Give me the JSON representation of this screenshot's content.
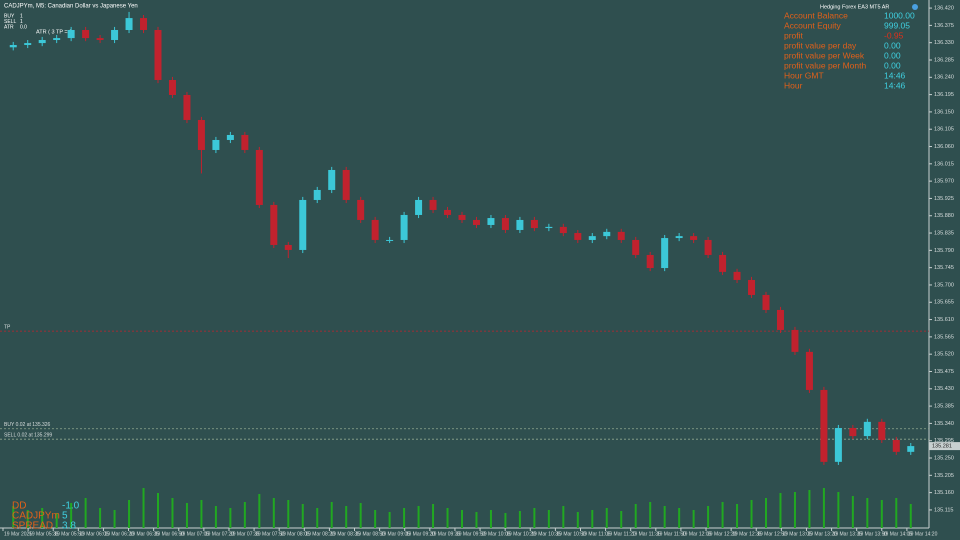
{
  "window_title": "CADJPYm, M5:  Canadian Dollar vs Japanese Yen",
  "ea_name": "Hedging Forex EA3 MT5 AR",
  "info": [
    [
      "BUY",
      "1"
    ],
    [
      "SELL",
      "1"
    ],
    [
      "ATR",
      "0.0"
    ]
  ],
  "atr_note": "ATR ( 3  TP =     0",
  "account": [
    [
      "Account Balance",
      "1000.00"
    ],
    [
      "Account Equity",
      "999.05"
    ],
    [
      "profit",
      "-0.95"
    ],
    [
      "profit value per day",
      "0.00"
    ],
    [
      "profit value per Week",
      "0.00"
    ],
    [
      "profit value per Month",
      "0.00"
    ],
    [
      "Hour GMT",
      "14:46"
    ],
    [
      "Hour",
      "14:46"
    ]
  ],
  "footer": [
    [
      "DD",
      "-1.0"
    ],
    [
      "CADJPYm",
      "5"
    ],
    [
      "SPREAD",
      "3.8"
    ]
  ],
  "chart_data": {
    "type": "candlestick",
    "up_color": "#3cc8d8",
    "down_color": "#c1222e",
    "volume_color": "#21a821",
    "ylim": [
      135.068,
      136.441
    ],
    "volume_ylim": [
      0,
      60
    ],
    "yticks": [
      {
        "value": 136.42,
        "label": "136.420"
      },
      136.375,
      {
        "value": 136.33,
        "label": "136.330"
      },
      136.285,
      {
        "value": 136.24,
        "label": "136.240"
      },
      136.195,
      {
        "value": 136.15,
        "label": "136.150"
      },
      136.105,
      {
        "value": 136.06,
        "label": "136.060"
      },
      136.015,
      {
        "value": 135.97,
        "label": "135.970"
      },
      135.925,
      {
        "value": 135.88,
        "label": "135.880"
      },
      135.835,
      {
        "value": 135.79,
        "label": "135.790"
      },
      135.745,
      {
        "value": 135.7,
        "label": "135.700"
      },
      135.655,
      {
        "value": 135.61,
        "label": "135.610"
      },
      135.565,
      {
        "value": 135.52,
        "label": "135.520"
      },
      135.475,
      {
        "value": 135.43,
        "label": "135.430"
      },
      135.385,
      {
        "value": 135.34,
        "label": "135.340"
      },
      135.295,
      {
        "value": 135.25,
        "label": "135.250"
      },
      135.205,
      {
        "value": 135.16,
        "label": "135.160"
      },
      135.115
    ],
    "time_labels": [
      "19 Mar 2025",
      "19 Mar 05:35",
      "19 Mar 05:50",
      "19 Mar 06:05",
      "19 Mar 06:20",
      "19 Mar 06:35",
      "19 Mar 06:50",
      "19 Mar 07:05",
      "19 Mar 07:20",
      "19 Mar 07:35",
      "19 Mar 07:50",
      "19 Mar 08:05",
      "19 Mar 08:20",
      "19 Mar 08:35",
      "19 Mar 08:50",
      "19 Mar 09:05",
      "19 Mar 09:20",
      "19 Mar 09:35",
      "19 Mar 09:50",
      "19 Mar 10:05",
      "19 Mar 10:20",
      "19 Mar 10:35",
      "19 Mar 10:50",
      "19 Mar 11:05",
      "19 Mar 11:20",
      "19 Mar 11:35",
      "19 Mar 11:50",
      "19 Mar 12:05",
      "19 Mar 12:20",
      "19 Mar 12:35",
      "19 Mar 12:50",
      "19 Mar 13:05",
      "19 Mar 13:20",
      "19 Mar 13:35",
      "19 Mar 13:50",
      "19 Mar 14:05",
      "19 Mar 14:20"
    ],
    "levels": [
      {
        "label": "TP",
        "value": 135.58,
        "color": "#c1222e"
      },
      {
        "label": "BUY 0.02 at 135.326",
        "value": 135.326,
        "color": "#8fa88f"
      },
      {
        "label": "SELL 0.02 at 135.299",
        "value": 135.299,
        "color": "#8fa88f"
      }
    ],
    "current_price": {
      "value": 135.281,
      "label": "135.281"
    },
    "open": [
      136.318,
      136.324,
      136.329,
      136.337,
      136.342,
      136.363,
      136.342,
      136.337,
      136.363,
      136.394,
      136.363,
      136.233,
      136.194,
      136.129,
      136.051,
      136.077,
      136.09,
      136.051,
      135.908,
      135.804,
      135.791,
      135.921,
      135.947,
      135.999,
      135.921,
      135.869,
      135.817,
      135.817,
      135.882,
      135.921,
      135.895,
      135.882,
      135.869,
      135.856,
      135.874,
      135.843,
      135.869,
      135.848,
      135.851,
      135.835,
      135.817,
      135.827,
      135.838,
      135.817,
      135.778,
      135.744,
      135.822,
      135.827,
      135.817,
      135.778,
      135.734,
      135.713,
      135.674,
      135.635,
      135.583,
      135.526,
      135.427,
      135.24,
      135.328,
      135.307,
      135.344,
      135.297,
      135.266
    ],
    "high": [
      136.332,
      136.337,
      136.345,
      136.35,
      136.371,
      136.371,
      136.35,
      136.371,
      136.41,
      136.402,
      136.371,
      136.241,
      136.202,
      136.137,
      136.085,
      136.098,
      136.098,
      136.059,
      135.916,
      135.812,
      135.929,
      135.955,
      136.007,
      136.007,
      135.929,
      135.877,
      135.825,
      135.89,
      135.929,
      135.929,
      135.903,
      135.89,
      135.877,
      135.882,
      135.882,
      135.877,
      135.877,
      135.859,
      135.859,
      135.843,
      135.835,
      135.846,
      135.846,
      135.825,
      135.786,
      135.83,
      135.835,
      135.835,
      135.825,
      135.786,
      135.742,
      135.721,
      135.682,
      135.643,
      135.591,
      135.534,
      135.435,
      135.336,
      135.336,
      135.352,
      135.352,
      135.305,
      135.289
    ],
    "low": [
      136.31,
      136.316,
      136.321,
      136.329,
      136.334,
      136.334,
      136.329,
      136.329,
      136.355,
      136.355,
      136.225,
      136.186,
      136.121,
      135.99,
      136.043,
      136.069,
      136.043,
      135.9,
      135.796,
      135.77,
      135.783,
      135.913,
      135.939,
      135.913,
      135.861,
      135.809,
      135.809,
      135.809,
      135.874,
      135.887,
      135.874,
      135.861,
      135.848,
      135.848,
      135.835,
      135.835,
      135.84,
      135.84,
      135.827,
      135.809,
      135.809,
      135.819,
      135.809,
      135.77,
      135.736,
      135.736,
      135.814,
      135.809,
      135.77,
      135.726,
      135.705,
      135.666,
      135.627,
      135.575,
      135.518,
      135.419,
      135.232,
      135.232,
      135.299,
      135.299,
      135.289,
      135.258,
      135.258
    ],
    "close": [
      136.324,
      136.329,
      136.337,
      136.342,
      136.363,
      136.342,
      136.337,
      136.363,
      136.394,
      136.363,
      136.233,
      136.194,
      136.129,
      136.051,
      136.077,
      136.09,
      136.051,
      135.908,
      135.804,
      135.791,
      135.921,
      135.947,
      135.999,
      135.921,
      135.869,
      135.817,
      135.817,
      135.882,
      135.921,
      135.895,
      135.882,
      135.869,
      135.856,
      135.874,
      135.843,
      135.869,
      135.848,
      135.851,
      135.835,
      135.817,
      135.827,
      135.838,
      135.817,
      135.778,
      135.744,
      135.822,
      135.827,
      135.817,
      135.778,
      135.734,
      135.713,
      135.674,
      135.635,
      135.583,
      135.526,
      135.427,
      135.24,
      135.328,
      135.307,
      135.344,
      135.297,
      135.266,
      135.281
    ],
    "volume": [
      22,
      18,
      20,
      15,
      25,
      30,
      20,
      18,
      28,
      40,
      35,
      30,
      25,
      28,
      22,
      20,
      26,
      34,
      30,
      28,
      24,
      20,
      26,
      22,
      25,
      18,
      16,
      20,
      22,
      24,
      20,
      18,
      16,
      18,
      15,
      17,
      20,
      18,
      22,
      16,
      18,
      20,
      17,
      24,
      26,
      22,
      20,
      18,
      22,
      26,
      24,
      28,
      30,
      35,
      36,
      38,
      40,
      36,
      32,
      30,
      28,
      30,
      24
    ]
  }
}
